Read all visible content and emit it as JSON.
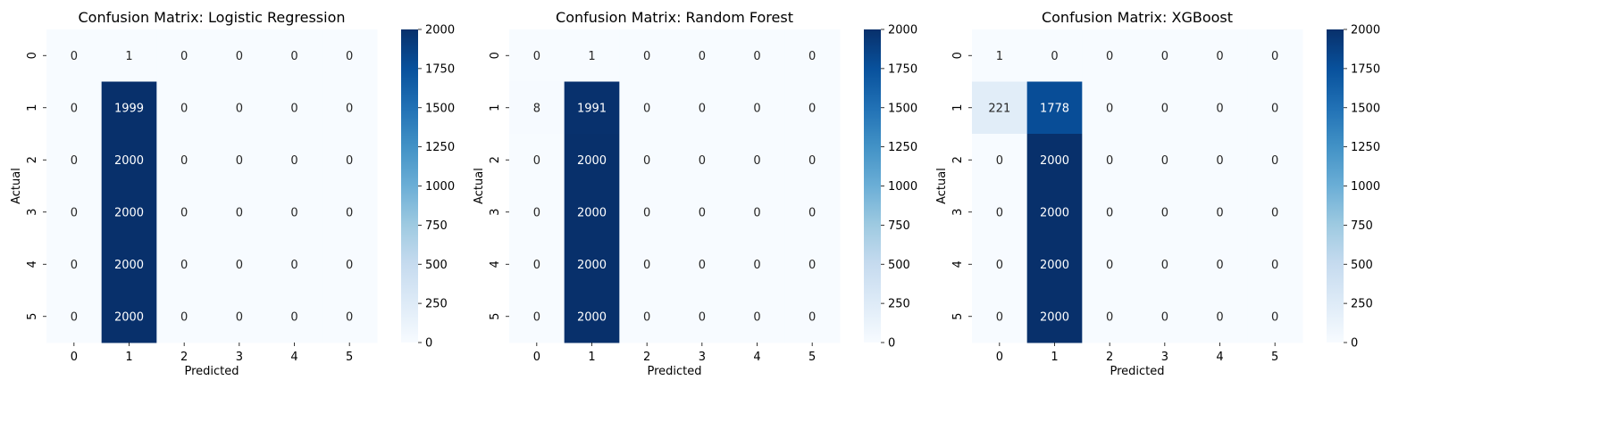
{
  "chart_data": [
    {
      "type": "heatmap",
      "title": "Confusion Matrix: Logistic Regression",
      "xlabel": "Predicted",
      "ylabel": "Actual",
      "x_categories": [
        "0",
        "1",
        "2",
        "3",
        "4",
        "5"
      ],
      "y_categories": [
        "0",
        "1",
        "2",
        "3",
        "4",
        "5"
      ],
      "values": [
        [
          0,
          1,
          0,
          0,
          0,
          0
        ],
        [
          0,
          1999,
          0,
          0,
          0,
          0
        ],
        [
          0,
          2000,
          0,
          0,
          0,
          0
        ],
        [
          0,
          2000,
          0,
          0,
          0,
          0
        ],
        [
          0,
          2000,
          0,
          0,
          0,
          0
        ],
        [
          0,
          2000,
          0,
          0,
          0,
          0
        ]
      ],
      "vmin": 0,
      "vmax": 2000,
      "colormap": "Blues",
      "colorbar_ticks": [
        0,
        250,
        500,
        750,
        1000,
        1250,
        1500,
        1750,
        2000
      ]
    },
    {
      "type": "heatmap",
      "title": "Confusion Matrix: Random Forest",
      "xlabel": "Predicted",
      "ylabel": "Actual",
      "x_categories": [
        "0",
        "1",
        "2",
        "3",
        "4",
        "5"
      ],
      "y_categories": [
        "0",
        "1",
        "2",
        "3",
        "4",
        "5"
      ],
      "values": [
        [
          0,
          1,
          0,
          0,
          0,
          0
        ],
        [
          8,
          1991,
          0,
          0,
          0,
          0
        ],
        [
          0,
          2000,
          0,
          0,
          0,
          0
        ],
        [
          0,
          2000,
          0,
          0,
          0,
          0
        ],
        [
          0,
          2000,
          0,
          0,
          0,
          0
        ],
        [
          0,
          2000,
          0,
          0,
          0,
          0
        ]
      ],
      "vmin": 0,
      "vmax": 2000,
      "colormap": "Blues",
      "colorbar_ticks": [
        0,
        250,
        500,
        750,
        1000,
        1250,
        1500,
        1750,
        2000
      ]
    },
    {
      "type": "heatmap",
      "title": "Confusion Matrix: XGBoost",
      "xlabel": "Predicted",
      "ylabel": "Actual",
      "x_categories": [
        "0",
        "1",
        "2",
        "3",
        "4",
        "5"
      ],
      "y_categories": [
        "0",
        "1",
        "2",
        "3",
        "4",
        "5"
      ],
      "values": [
        [
          1,
          0,
          0,
          0,
          0,
          0
        ],
        [
          221,
          1778,
          0,
          0,
          0,
          0
        ],
        [
          0,
          2000,
          0,
          0,
          0,
          0
        ],
        [
          0,
          2000,
          0,
          0,
          0,
          0
        ],
        [
          0,
          2000,
          0,
          0,
          0,
          0
        ],
        [
          0,
          2000,
          0,
          0,
          0,
          0
        ]
      ],
      "vmin": 0,
      "vmax": 2000,
      "colormap": "Blues",
      "colorbar_ticks": [
        0,
        250,
        500,
        750,
        1000,
        1250,
        1500,
        1750,
        2000
      ]
    }
  ]
}
